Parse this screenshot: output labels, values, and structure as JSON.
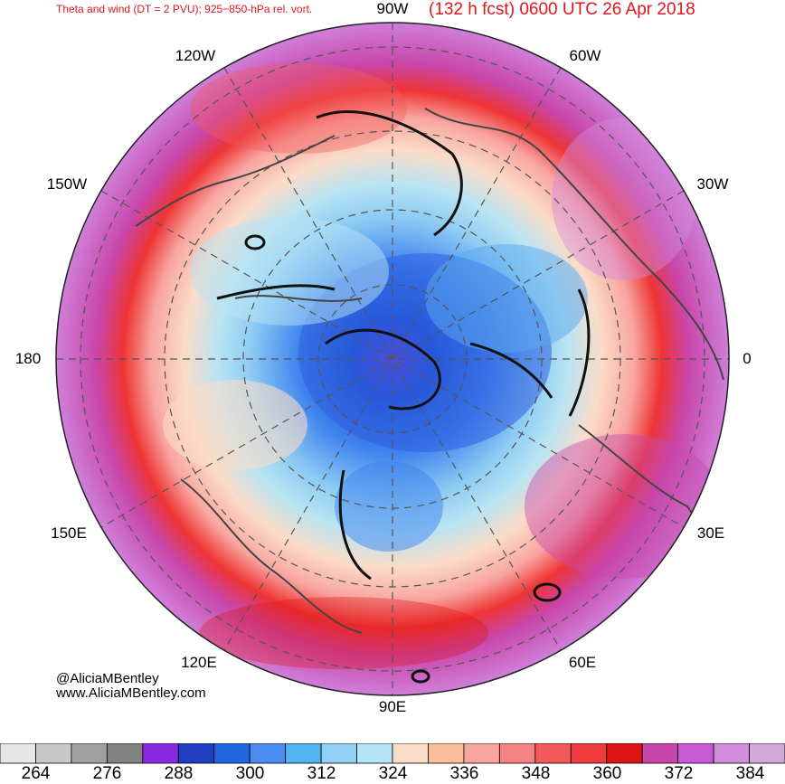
{
  "header": {
    "left_title": "Theta and wind (DT = 2 PVU); 925−850-hPa rel. vort.",
    "right_title": "(132 h fcst) 0600 UTC 26 Apr 2018",
    "title_color": "#e0161d"
  },
  "map": {
    "projection": "north polar stereographic",
    "longitude_labels": {
      "lon_90w": "90W",
      "lon_60w": "60W",
      "lon_30w": "30W",
      "lon_0": "0",
      "lon_30e": "30E",
      "lon_60e": "60E",
      "lon_90e": "90E",
      "lon_120e": "120E",
      "lon_150e": "150E",
      "lon_180": "180",
      "lon_150w": "150W",
      "lon_120w": "120W"
    }
  },
  "credits": {
    "handle": "@AliciaMBentley",
    "website": "www.AliciaMBentley.com"
  },
  "colorbar": {
    "colors": [
      "#e6e6e6",
      "#c8c8c8",
      "#a0a0a0",
      "#828282",
      "#8a2be2",
      "#1f3fc2",
      "#1f66e0",
      "#4b8cf0",
      "#4fb4f0",
      "#93d0f5",
      "#b3e6f5",
      "#fadcc8",
      "#fbbe9b",
      "#f8a5a0",
      "#f58282",
      "#f25a5a",
      "#f03c3c",
      "#e01414",
      "#c846aa",
      "#c85ad7",
      "#d28cdc",
      "#d2aad7"
    ],
    "tick_labels": [
      "264",
      "276",
      "288",
      "300",
      "312",
      "324",
      "336",
      "348",
      "360",
      "372",
      "384"
    ]
  }
}
